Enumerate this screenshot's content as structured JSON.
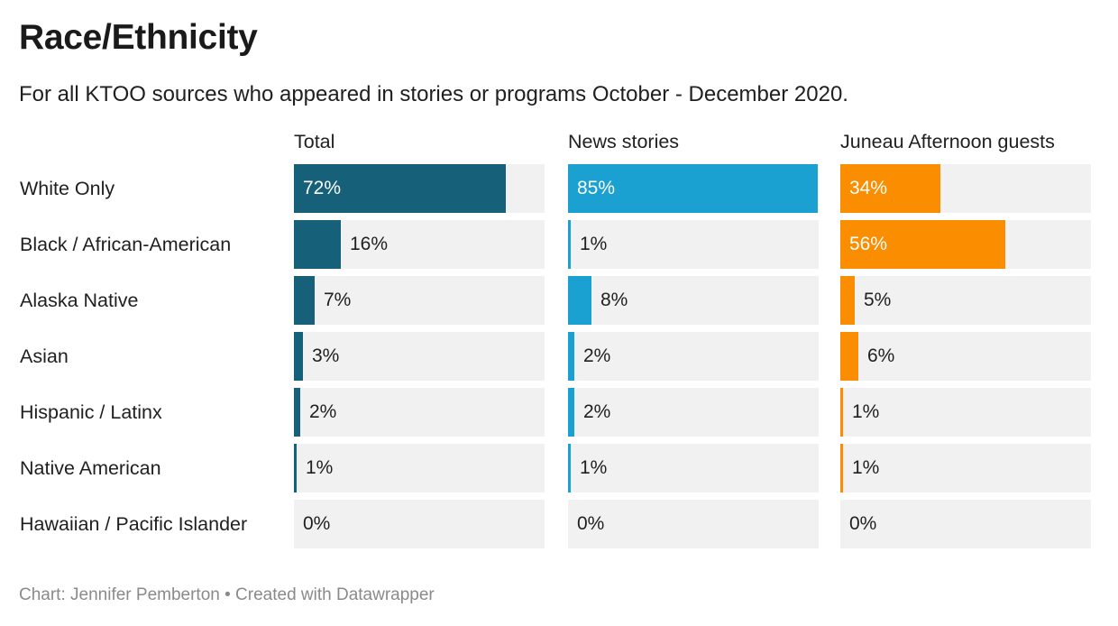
{
  "title": "Race/Ethnicity",
  "subtitle": "For all KTOO sources who appeared in stories or programs October - December 2020.",
  "footer": "Chart: Jennifer Pemberton • Created with Datawrapper",
  "chart_data": {
    "type": "bar",
    "orientation": "horizontal",
    "title": "Race/Ethnicity",
    "subtitle": "For all KTOO sources who appeared in stories or programs October - December 2020.",
    "xlim": [
      0,
      100
    ],
    "unit": "%",
    "categories": [
      "White Only",
      "Black / African-American",
      "Alaska Native",
      "Asian",
      "Hispanic / Latinx",
      "Native American",
      "Hawaiian / Pacific Islander"
    ],
    "series": [
      {
        "name": "Total",
        "color": "#16607a",
        "values": [
          72,
          16,
          7,
          3,
          2,
          1,
          0
        ],
        "labels": [
          "72%",
          "16%",
          "7%",
          "3%",
          "2%",
          "1%",
          "0%"
        ]
      },
      {
        "name": "News stories",
        "color": "#1aa1d1",
        "values": [
          85,
          1,
          8,
          2,
          2,
          1,
          0
        ],
        "labels": [
          "85%",
          "1%",
          "8%",
          "2%",
          "2%",
          "1%",
          "0%"
        ]
      },
      {
        "name": "Juneau Afternoon guests",
        "color": "#fb8d00",
        "values": [
          34,
          56,
          5,
          6,
          1,
          1,
          0
        ],
        "labels": [
          "34%",
          "56%",
          "5%",
          "6%",
          "1%",
          "1%",
          "0%"
        ]
      }
    ]
  }
}
